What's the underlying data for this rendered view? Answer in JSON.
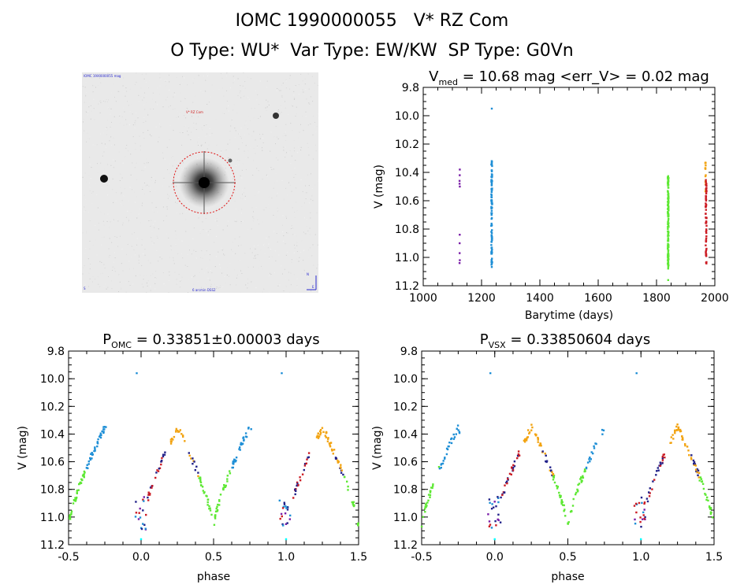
{
  "header": {
    "title": "IOMC 1990000055   V* RZ Com",
    "subtitle": "O Type: WU*  Var Type: EW/KW  SP Type: G0Vn"
  },
  "finder_chart": {
    "target_label": "V* RZ Com",
    "corner_top_left": "IOMC 1990000055 mag",
    "bottom_center": "6 arcmin DSS2",
    "bottom_left": "S",
    "compass_n": "N",
    "compass_e": "E"
  },
  "colors": {
    "purple": "#7a1ea8",
    "blue": "#1f8fd6",
    "green": "#5ee834",
    "orange": "#f2a311",
    "red": "#cc1c24",
    "navy": "#22228a",
    "grid_image_bg": "#e9e9e9"
  },
  "chart_data": [
    {
      "id": "lightcurve",
      "type": "scatter",
      "title": "V_med = 10.68 mag <err_V> = 0.02 mag",
      "title_parts": {
        "pre": "V",
        "sub": "med",
        "post": " = 10.68 mag <err_V> = 0.02 mag"
      },
      "xlabel": "Barytime (days)",
      "ylabel": "V (mag)",
      "xlim": [
        1000,
        2000
      ],
      "ylim": [
        11.2,
        9.8
      ],
      "xticks": [
        "1000",
        "1200",
        "1400",
        "1600",
        "1800",
        "2000"
      ],
      "yticks": [
        "9.8",
        "10.0",
        "10.2",
        "10.4",
        "10.6",
        "10.8",
        "11.0",
        "11.2"
      ],
      "series": [
        {
          "color": "purple",
          "x_center": 1125,
          "x_spread": 1,
          "points": [
            10.38,
            10.42,
            10.46,
            10.48,
            10.5,
            10.84,
            10.9,
            10.97,
            11.02,
            11.04
          ]
        },
        {
          "color": "blue",
          "x_center": 1235,
          "x_spread": 3,
          "y_range": [
            10.32,
            11.07
          ],
          "n": 90,
          "extra": [
            9.95
          ]
        },
        {
          "color": "green",
          "x_center": 1840,
          "x_spread": 3,
          "y_range": [
            10.42,
            11.08
          ],
          "n": 140,
          "extra": [
            11.16
          ]
        },
        {
          "color": "orange",
          "x_center": 1968,
          "x_spread": 2,
          "y_range": [
            10.32,
            10.55
          ],
          "n": 14
        },
        {
          "color": "red",
          "x_center": 1970,
          "x_spread": 3,
          "y_range": [
            10.45,
            11.05
          ],
          "n": 60
        }
      ]
    },
    {
      "id": "phase_omc",
      "type": "scatter",
      "title": "P_OMC = 0.33851±0.00003 days",
      "title_parts": {
        "pre": "P",
        "sub": "OMC",
        "post": " = 0.33851±0.00003 days"
      },
      "xlabel": "phase",
      "ylabel": "V (mag)",
      "xlim": [
        -0.5,
        1.5
      ],
      "ylim": [
        11.2,
        9.8
      ],
      "xticks": [
        "-0.5",
        "0.0",
        "0.5",
        "1.0",
        "1.5"
      ],
      "yticks": [
        "9.8",
        "10.0",
        "10.2",
        "10.4",
        "10.6",
        "10.8",
        "11.0",
        "11.2"
      ],
      "curve": {
        "max_mag": 10.35,
        "min_mag": 11.07,
        "primary_phase": 0.0,
        "secondary_phase": 0.5
      },
      "outliers": [
        {
          "phase": -0.03,
          "mag": 9.96
        },
        {
          "phase": 0.97,
          "mag": 9.96
        },
        {
          "phase": 0.0,
          "mag": 11.16
        },
        {
          "phase": 1.0,
          "mag": 11.16
        }
      ]
    },
    {
      "id": "phase_vsx",
      "type": "scatter",
      "title": "P_VSX = 0.33850604 days",
      "title_parts": {
        "pre": "P",
        "sub": "VSX",
        "post": " = 0.33850604 days"
      },
      "xlabel": "phase",
      "ylabel": "V (mag)",
      "xlim": [
        -0.5,
        1.5
      ],
      "ylim": [
        11.2,
        9.8
      ],
      "xticks": [
        "-0.5",
        "0.0",
        "0.5",
        "1.0",
        "1.5"
      ],
      "yticks": [
        "9.8",
        "10.0",
        "10.2",
        "10.4",
        "10.6",
        "10.8",
        "11.0",
        "11.2"
      ],
      "curve": {
        "max_mag": 10.35,
        "min_mag": 11.07,
        "primary_phase": 0.0,
        "secondary_phase": 0.5
      },
      "outliers": [
        {
          "phase": -0.03,
          "mag": 9.96
        },
        {
          "phase": 0.97,
          "mag": 9.96
        },
        {
          "phase": 0.0,
          "mag": 11.16
        },
        {
          "phase": 1.0,
          "mag": 11.16
        }
      ]
    }
  ]
}
